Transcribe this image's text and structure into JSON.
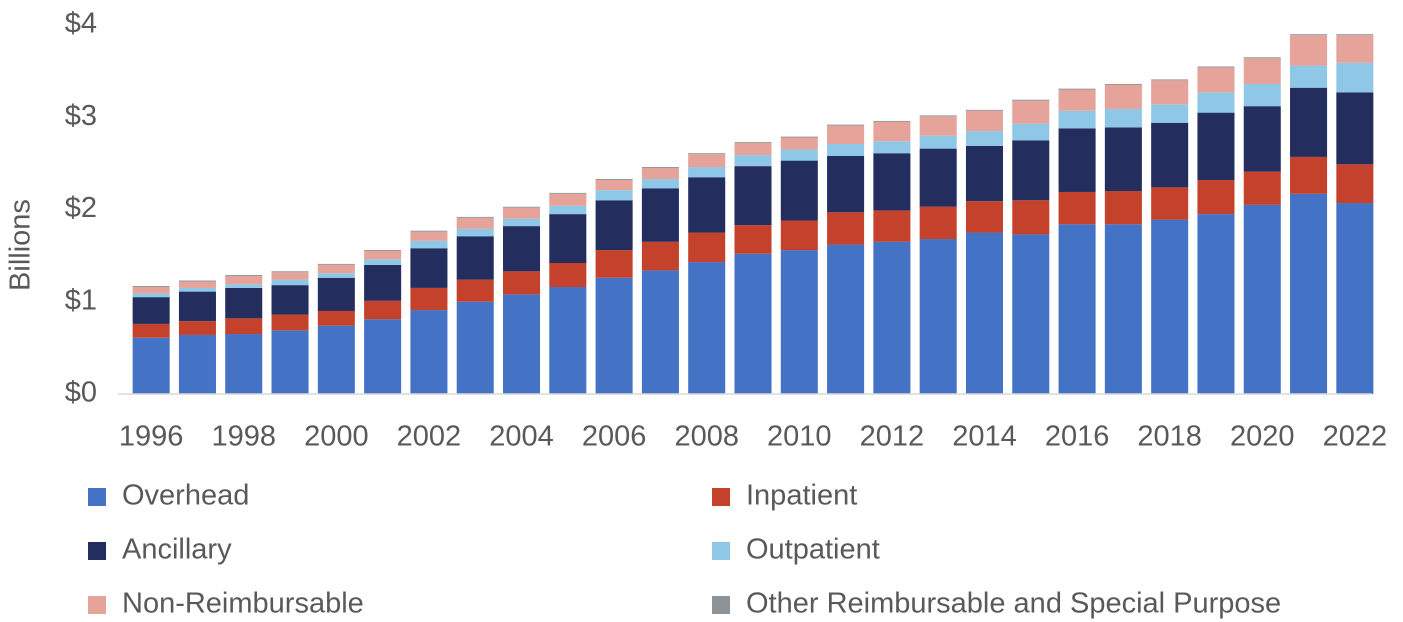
{
  "chart_data": {
    "type": "stacked_bar",
    "y_label": "Billions",
    "x": [
      1996,
      1997,
      1998,
      1999,
      2000,
      2001,
      2002,
      2003,
      2004,
      2005,
      2006,
      2007,
      2008,
      2009,
      2010,
      2011,
      2012,
      2013,
      2014,
      2015,
      2016,
      2017,
      2018,
      2019,
      2020,
      2021,
      2022
    ],
    "xlim": [
      1995.5,
      2022.5
    ],
    "xticks": [
      1996,
      1998,
      2000,
      2002,
      2004,
      2006,
      2008,
      2010,
      2012,
      2014,
      2016,
      2018,
      2020,
      2022
    ],
    "ylim": [
      0,
      4
    ],
    "yticks": [
      {
        "value": 0,
        "label": "$0"
      },
      {
        "value": 1,
        "label": "$1"
      },
      {
        "value": 2,
        "label": "$2"
      },
      {
        "value": 3,
        "label": "$3"
      },
      {
        "value": 4,
        "label": "$4"
      }
    ],
    "series": [
      {
        "name": "Overhead",
        "color": "#4472c4",
        "values": [
          0.61,
          0.64,
          0.65,
          0.69,
          0.74,
          0.81,
          0.91,
          1.0,
          1.08,
          1.16,
          1.26,
          1.34,
          1.43,
          1.52,
          1.56,
          1.62,
          1.65,
          1.68,
          1.75,
          1.73,
          1.84,
          1.84,
          1.89,
          1.95,
          2.05,
          2.17,
          2.07
        ]
      },
      {
        "name": "Inpatient",
        "color": "#c4422b",
        "values": [
          0.15,
          0.15,
          0.17,
          0.17,
          0.16,
          0.2,
          0.24,
          0.24,
          0.25,
          0.26,
          0.3,
          0.31,
          0.32,
          0.31,
          0.32,
          0.35,
          0.34,
          0.35,
          0.34,
          0.37,
          0.35,
          0.36,
          0.35,
          0.37,
          0.36,
          0.4,
          0.42
        ]
      },
      {
        "name": "Ancillary",
        "color": "#232d5e",
        "values": [
          0.29,
          0.32,
          0.33,
          0.32,
          0.36,
          0.39,
          0.43,
          0.47,
          0.49,
          0.53,
          0.54,
          0.58,
          0.6,
          0.64,
          0.65,
          0.61,
          0.62,
          0.63,
          0.6,
          0.65,
          0.69,
          0.69,
          0.7,
          0.73,
          0.71,
          0.75,
          0.78
        ]
      },
      {
        "name": "Outpatient",
        "color": "#8fc7e6",
        "values": [
          0.04,
          0.04,
          0.04,
          0.06,
          0.05,
          0.06,
          0.08,
          0.08,
          0.08,
          0.09,
          0.11,
          0.1,
          0.11,
          0.12,
          0.12,
          0.13,
          0.13,
          0.14,
          0.16,
          0.18,
          0.19,
          0.2,
          0.2,
          0.22,
          0.24,
          0.24,
          0.32
        ]
      },
      {
        "name": "Non-Reimbursable",
        "color": "#e5a39a",
        "values": [
          0.07,
          0.07,
          0.09,
          0.08,
          0.09,
          0.09,
          0.1,
          0.12,
          0.12,
          0.13,
          0.11,
          0.12,
          0.14,
          0.13,
          0.13,
          0.2,
          0.21,
          0.21,
          0.22,
          0.25,
          0.23,
          0.26,
          0.26,
          0.27,
          0.28,
          0.33,
          0.3
        ]
      },
      {
        "name": "Other Reimbursable and Special Purpose",
        "color": "#8c9399",
        "values": [
          0.01,
          0.01,
          0.01,
          0.01,
          0.01,
          0.01,
          0.01,
          0.01,
          0.01,
          0.01,
          0.01,
          0.01,
          0.01,
          0.01,
          0.01,
          0.01,
          0.01,
          0.01,
          0.01,
          0.01,
          0.01,
          0.01,
          0.01,
          0.01,
          0.01,
          0.01,
          0.01
        ]
      }
    ]
  }
}
